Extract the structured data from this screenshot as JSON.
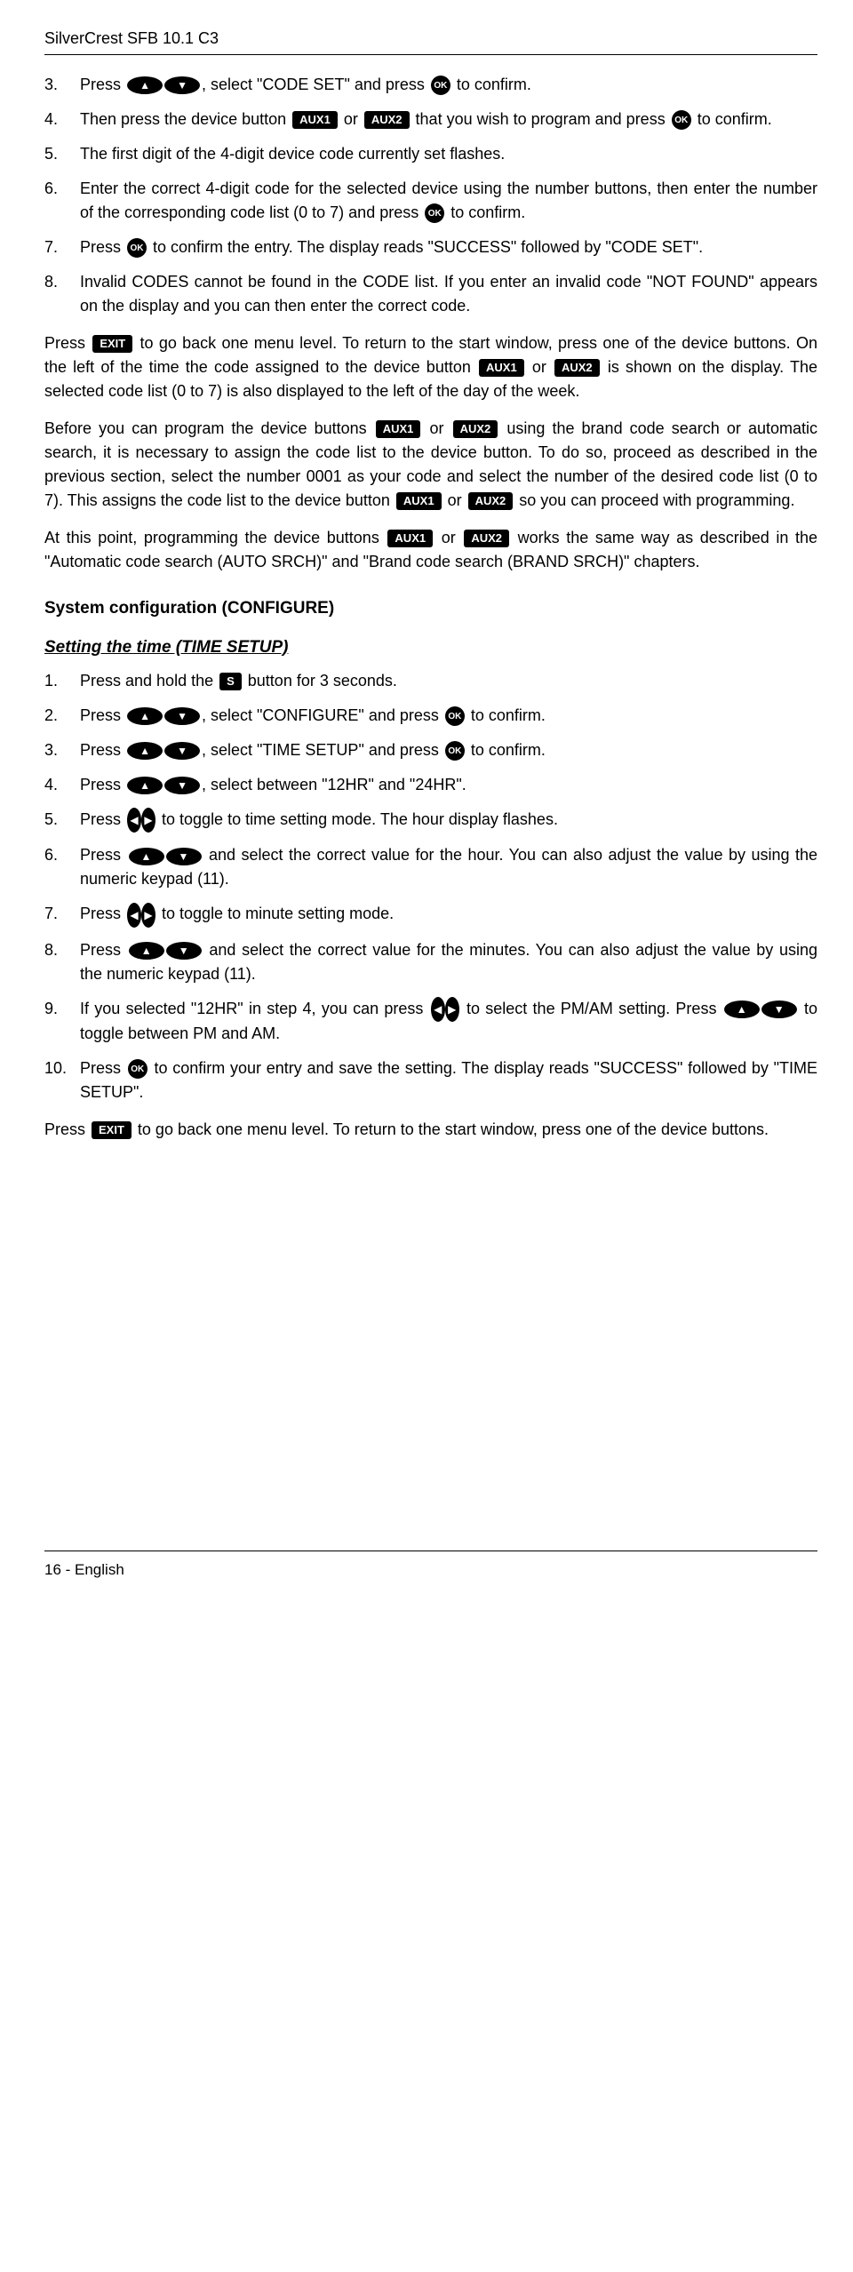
{
  "header": "SilverCrest SFB 10.1 C3",
  "icons": {
    "aux1": "AUX1",
    "aux2": "AUX2",
    "ok": "OK",
    "exit": "EXIT",
    "s": "S"
  },
  "list1": {
    "3": {
      "pre": "Press ",
      "mid": ", select \"CODE SET\" and press ",
      "post": " to confirm."
    },
    "4": {
      "pre": "Then press the device button ",
      "mid": " or ",
      "post": " that you wish to program and press ",
      "end": " to confirm."
    },
    "5": "The first digit of the 4-digit device code currently set flashes.",
    "6": {
      "pre": "Enter the correct 4-digit code for the selected device using the number buttons, then enter the number of the corresponding code list (0 to 7) and press ",
      "post": " to confirm."
    },
    "7": {
      "pre": "Press ",
      "post": " to confirm the entry. The display reads \"SUCCESS\" followed by \"CODE SET\"."
    },
    "8": "Invalid CODES cannot be found in the CODE list. If you enter an invalid code \"NOT FOUND\" appears on the display and you can then enter the correct code."
  },
  "para1": {
    "a": "Press ",
    "b": " to go back one menu level. To return to the start window, press one of the device buttons. On the left of the time the code assigned to the device button ",
    "c": " or ",
    "d": " is shown on the display. The selected code list (0 to 7) is also displayed to the left of the day of the week."
  },
  "para2": {
    "a": "Before you can program the device buttons ",
    "b": " or ",
    "c": " using the brand code search or automatic search, it is necessary to assign the code list to the device button. To do so, proceed as described in the previous section, select the number 0001 as your code and select the number of the desired code list (0 to 7). This assigns the code list to the device button ",
    "d": " or ",
    "e": " so you can proceed with programming."
  },
  "para3": {
    "a": "At this point, programming the device buttons ",
    "b": " or ",
    "c": " works the same way as described in the \"Automatic code search (AUTO SRCH)\" and \"Brand code search (BRAND SRCH)\" chapters."
  },
  "section": "System configuration (CONFIGURE)",
  "subsection": "Setting the time (TIME SETUP)",
  "list2": {
    "1": {
      "a": "Press and hold the ",
      "b": " button for 3 seconds."
    },
    "2": {
      "a": "Press ",
      "b": ", select \"CONFIGURE\" and press ",
      "c": " to confirm."
    },
    "3": {
      "a": "Press ",
      "b": ", select \"TIME SETUP\" and press ",
      "c": " to confirm."
    },
    "4": {
      "a": "Press ",
      "b": ", select between \"12HR\" and \"24HR\"."
    },
    "5": {
      "a": "Press ",
      "b": " to toggle to time setting mode. The hour display flashes."
    },
    "6": {
      "a": "Press ",
      "b": " and select the correct value for the hour. You can also adjust the value by using the numeric keypad (11)."
    },
    "7": {
      "a": "Press ",
      "b": " to toggle to minute setting mode."
    },
    "8": {
      "a": "Press ",
      "b": " and select the correct value for the minutes. You can also adjust the value by using the numeric keypad (11)."
    },
    "9": {
      "a": "If you selected \"12HR\" in step 4, you can press ",
      "b": " to select the PM/AM setting. Press ",
      "c": " to toggle between PM and AM."
    },
    "10": {
      "a": "Press ",
      "b": " to confirm your entry and save the setting. The display reads \"SUCCESS\" followed by \"TIME SETUP\"."
    }
  },
  "para4": {
    "a": "Press ",
    "b": " to go back one menu level. To return to the start window, press one of the device buttons."
  },
  "footer": "16 - English"
}
